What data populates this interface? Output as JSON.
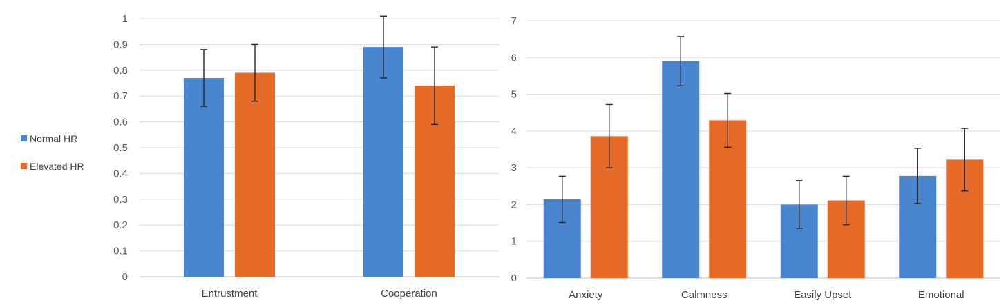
{
  "legend": [
    {
      "name": "Normal HR",
      "color": "#4a86cf"
    },
    {
      "name": "Elevated HR",
      "color": "#e66b29"
    }
  ],
  "chart_data": [
    {
      "type": "bar",
      "categories": [
        "Entrustment",
        "Cooperation"
      ],
      "ylim": [
        0,
        1
      ],
      "ytick_step": 0.1,
      "grid": true,
      "legend_position": "left",
      "series": [
        {
          "name": "Normal HR",
          "color": "#4a86cf",
          "values": [
            0.77,
            0.89
          ],
          "errors": [
            0.11,
            0.12
          ]
        },
        {
          "name": "Elevated HR",
          "color": "#e66b29",
          "values": [
            0.79,
            0.74
          ],
          "errors": [
            0.11,
            0.15
          ]
        }
      ]
    },
    {
      "type": "bar",
      "categories": [
        "Anxiety",
        "Calmness",
        "Easily Upset",
        "Emotional"
      ],
      "ylim": [
        0,
        7
      ],
      "ytick_step": 1,
      "grid": true,
      "series": [
        {
          "name": "Normal HR",
          "color": "#4a86cf",
          "values": [
            2.14,
            5.9,
            2.0,
            2.78
          ],
          "errors": [
            0.63,
            0.67,
            0.65,
            0.75
          ]
        },
        {
          "name": "Elevated HR",
          "color": "#e66b29",
          "values": [
            3.86,
            4.29,
            2.11,
            3.22
          ],
          "errors": [
            0.86,
            0.73,
            0.66,
            0.85
          ]
        }
      ]
    }
  ]
}
